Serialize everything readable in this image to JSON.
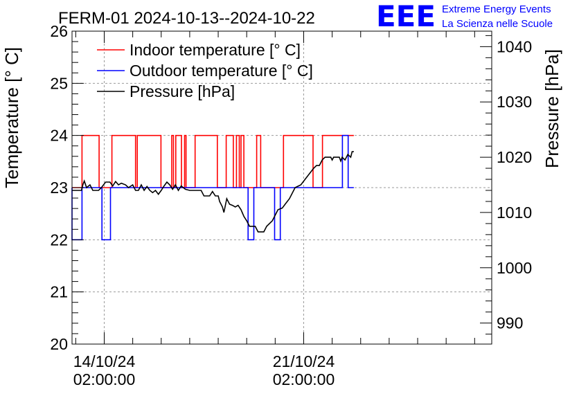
{
  "chart_data": {
    "type": "line",
    "title": "FERM-01 2024-10-13--2024-10-22",
    "logo": {
      "mark": "EEE",
      "line1": "Extreme Energy Events",
      "line2": "La Scienza nelle Scuole",
      "color": "#0000ff"
    },
    "ylabel_left": "Temperature [° C]",
    "ylabel_right": "Pressure [hPa]",
    "ylim_left": [
      20,
      26
    ],
    "ylim_right": [
      986.2,
      1042.8
    ],
    "xlim_days": [
      -1.13,
      13.6
    ],
    "grid": true,
    "legend_position": "top-left",
    "yticks_left": [
      20,
      21,
      22,
      23,
      24,
      25,
      26
    ],
    "yticks_right": [
      990,
      1000,
      1010,
      1020,
      1030,
      1040
    ],
    "xticks": [
      {
        "day": 0,
        "line1": "14/10/24",
        "line2": "02:00:00"
      },
      {
        "day": 7,
        "line1": "21/10/24",
        "line2": "02:00:00"
      }
    ],
    "series": [
      {
        "name": "Indoor temperature [° C]",
        "color": "#ff0000",
        "axis": "left",
        "step": true,
        "points": [
          [
            -1.13,
            23
          ],
          [
            -0.78,
            23
          ],
          [
            -0.78,
            24
          ],
          [
            -0.18,
            24
          ],
          [
            -0.18,
            23
          ],
          [
            0.27,
            23
          ],
          [
            0.27,
            24
          ],
          [
            1.1,
            24
          ],
          [
            1.1,
            23
          ],
          [
            1.16,
            23
          ],
          [
            1.16,
            24
          ],
          [
            1.99,
            24
          ],
          [
            1.99,
            23
          ],
          [
            2.37,
            23
          ],
          [
            2.37,
            24
          ],
          [
            2.43,
            24
          ],
          [
            2.43,
            23
          ],
          [
            2.51,
            23
          ],
          [
            2.51,
            24
          ],
          [
            2.71,
            24
          ],
          [
            2.71,
            23
          ],
          [
            2.82,
            23
          ],
          [
            2.82,
            24
          ],
          [
            2.87,
            24
          ],
          [
            2.87,
            23
          ],
          [
            3.19,
            23
          ],
          [
            3.19,
            24
          ],
          [
            3.97,
            24
          ],
          [
            3.97,
            23
          ],
          [
            4.28,
            23
          ],
          [
            4.28,
            24
          ],
          [
            4.53,
            24
          ],
          [
            4.53,
            23
          ],
          [
            4.64,
            23
          ],
          [
            4.64,
            24
          ],
          [
            4.74,
            24
          ],
          [
            4.74,
            23
          ],
          [
            4.8,
            23
          ],
          [
            4.8,
            24
          ],
          [
            4.9,
            24
          ],
          [
            4.9,
            23
          ],
          [
            5.35,
            23
          ],
          [
            5.35,
            24
          ],
          [
            5.49,
            24
          ],
          [
            5.49,
            23
          ],
          [
            6.29,
            23
          ],
          [
            6.29,
            24
          ],
          [
            7.33,
            24
          ],
          [
            7.33,
            23
          ],
          [
            7.66,
            23
          ],
          [
            7.66,
            24
          ],
          [
            8.76,
            24
          ]
        ]
      },
      {
        "name": "Outdoor temperature [° C]",
        "color": "#0000ff",
        "axis": "left",
        "step": true,
        "points": [
          [
            -1.13,
            23
          ],
          [
            -1.13,
            22
          ],
          [
            -0.78,
            22
          ],
          [
            -0.78,
            23
          ],
          [
            -0.08,
            23
          ],
          [
            -0.08,
            22
          ],
          [
            0.22,
            22
          ],
          [
            0.22,
            23
          ],
          [
            5.05,
            23
          ],
          [
            5.05,
            22
          ],
          [
            5.25,
            22
          ],
          [
            5.25,
            23
          ],
          [
            5.98,
            23
          ],
          [
            5.98,
            22
          ],
          [
            6.18,
            22
          ],
          [
            6.18,
            23
          ],
          [
            8.36,
            23
          ],
          [
            8.36,
            24
          ],
          [
            8.56,
            24
          ],
          [
            8.56,
            23
          ],
          [
            8.76,
            23
          ]
        ]
      },
      {
        "name": "Pressure [hPa]",
        "color": "#000000",
        "axis": "right",
        "step": false,
        "points": [
          [
            -1.13,
            1014
          ],
          [
            -0.8,
            1014
          ],
          [
            -0.75,
            1015
          ],
          [
            -0.7,
            1015.7
          ],
          [
            -0.62,
            1014.5
          ],
          [
            -0.5,
            1015
          ],
          [
            -0.4,
            1014
          ],
          [
            -0.2,
            1014
          ],
          [
            -0.1,
            1014.5
          ],
          [
            0.05,
            1015.5
          ],
          [
            0.2,
            1015.5
          ],
          [
            0.3,
            1014.8
          ],
          [
            0.4,
            1015.6
          ],
          [
            0.5,
            1015
          ],
          [
            0.6,
            1015.3
          ],
          [
            0.75,
            1015
          ],
          [
            0.85,
            1014.5
          ],
          [
            1,
            1015
          ],
          [
            1.1,
            1014
          ],
          [
            1.2,
            1014
          ],
          [
            1.3,
            1015
          ],
          [
            1.4,
            1014
          ],
          [
            1.5,
            1014.7
          ],
          [
            1.6,
            1014
          ],
          [
            1.7,
            1013.6
          ],
          [
            1.8,
            1014
          ],
          [
            1.9,
            1013.3
          ],
          [
            2,
            1014
          ],
          [
            2.1,
            1014.8
          ],
          [
            2.2,
            1015.5
          ],
          [
            2.3,
            1015
          ],
          [
            2.4,
            1014.2
          ],
          [
            2.5,
            1015
          ],
          [
            2.6,
            1014
          ],
          [
            2.7,
            1014.8
          ],
          [
            2.85,
            1014.2
          ],
          [
            3,
            1014
          ],
          [
            3.2,
            1014
          ],
          [
            3.4,
            1014
          ],
          [
            3.5,
            1013
          ],
          [
            3.7,
            1013
          ],
          [
            3.8,
            1013.8
          ],
          [
            3.9,
            1013
          ],
          [
            4,
            1013
          ],
          [
            4.05,
            1012
          ],
          [
            4.15,
            1011
          ],
          [
            4.2,
            1010
          ],
          [
            4.3,
            1012.5
          ],
          [
            4.4,
            1011.5
          ],
          [
            4.5,
            1011.3
          ],
          [
            4.6,
            1011
          ],
          [
            4.7,
            1011.3
          ],
          [
            4.8,
            1010.5
          ],
          [
            4.9,
            1009.3
          ],
          [
            5,
            1008.5
          ],
          [
            5.1,
            1007.5
          ],
          [
            5.3,
            1007.5
          ],
          [
            5.4,
            1006.5
          ],
          [
            5.6,
            1006.5
          ],
          [
            5.7,
            1007.5
          ],
          [
            5.9,
            1008.5
          ],
          [
            6,
            1009.5
          ],
          [
            6.1,
            1010.5
          ],
          [
            6.25,
            1010.8
          ],
          [
            6.35,
            1011.5
          ],
          [
            6.5,
            1012.5
          ],
          [
            6.6,
            1013.5
          ],
          [
            6.7,
            1014.5
          ],
          [
            6.9,
            1015
          ],
          [
            7.05,
            1016
          ],
          [
            7.2,
            1017
          ],
          [
            7.35,
            1018
          ],
          [
            7.45,
            1018.5
          ],
          [
            7.55,
            1018.5
          ],
          [
            7.65,
            1019.5
          ],
          [
            7.75,
            1020
          ],
          [
            7.95,
            1020
          ],
          [
            8,
            1019.5
          ],
          [
            8.05,
            1020
          ],
          [
            8.25,
            1020
          ],
          [
            8.3,
            1019.3
          ],
          [
            8.35,
            1020
          ],
          [
            8.45,
            1019.5
          ],
          [
            8.55,
            1020.5
          ],
          [
            8.65,
            1020
          ],
          [
            8.7,
            1021
          ],
          [
            8.76,
            1021
          ]
        ]
      }
    ]
  }
}
